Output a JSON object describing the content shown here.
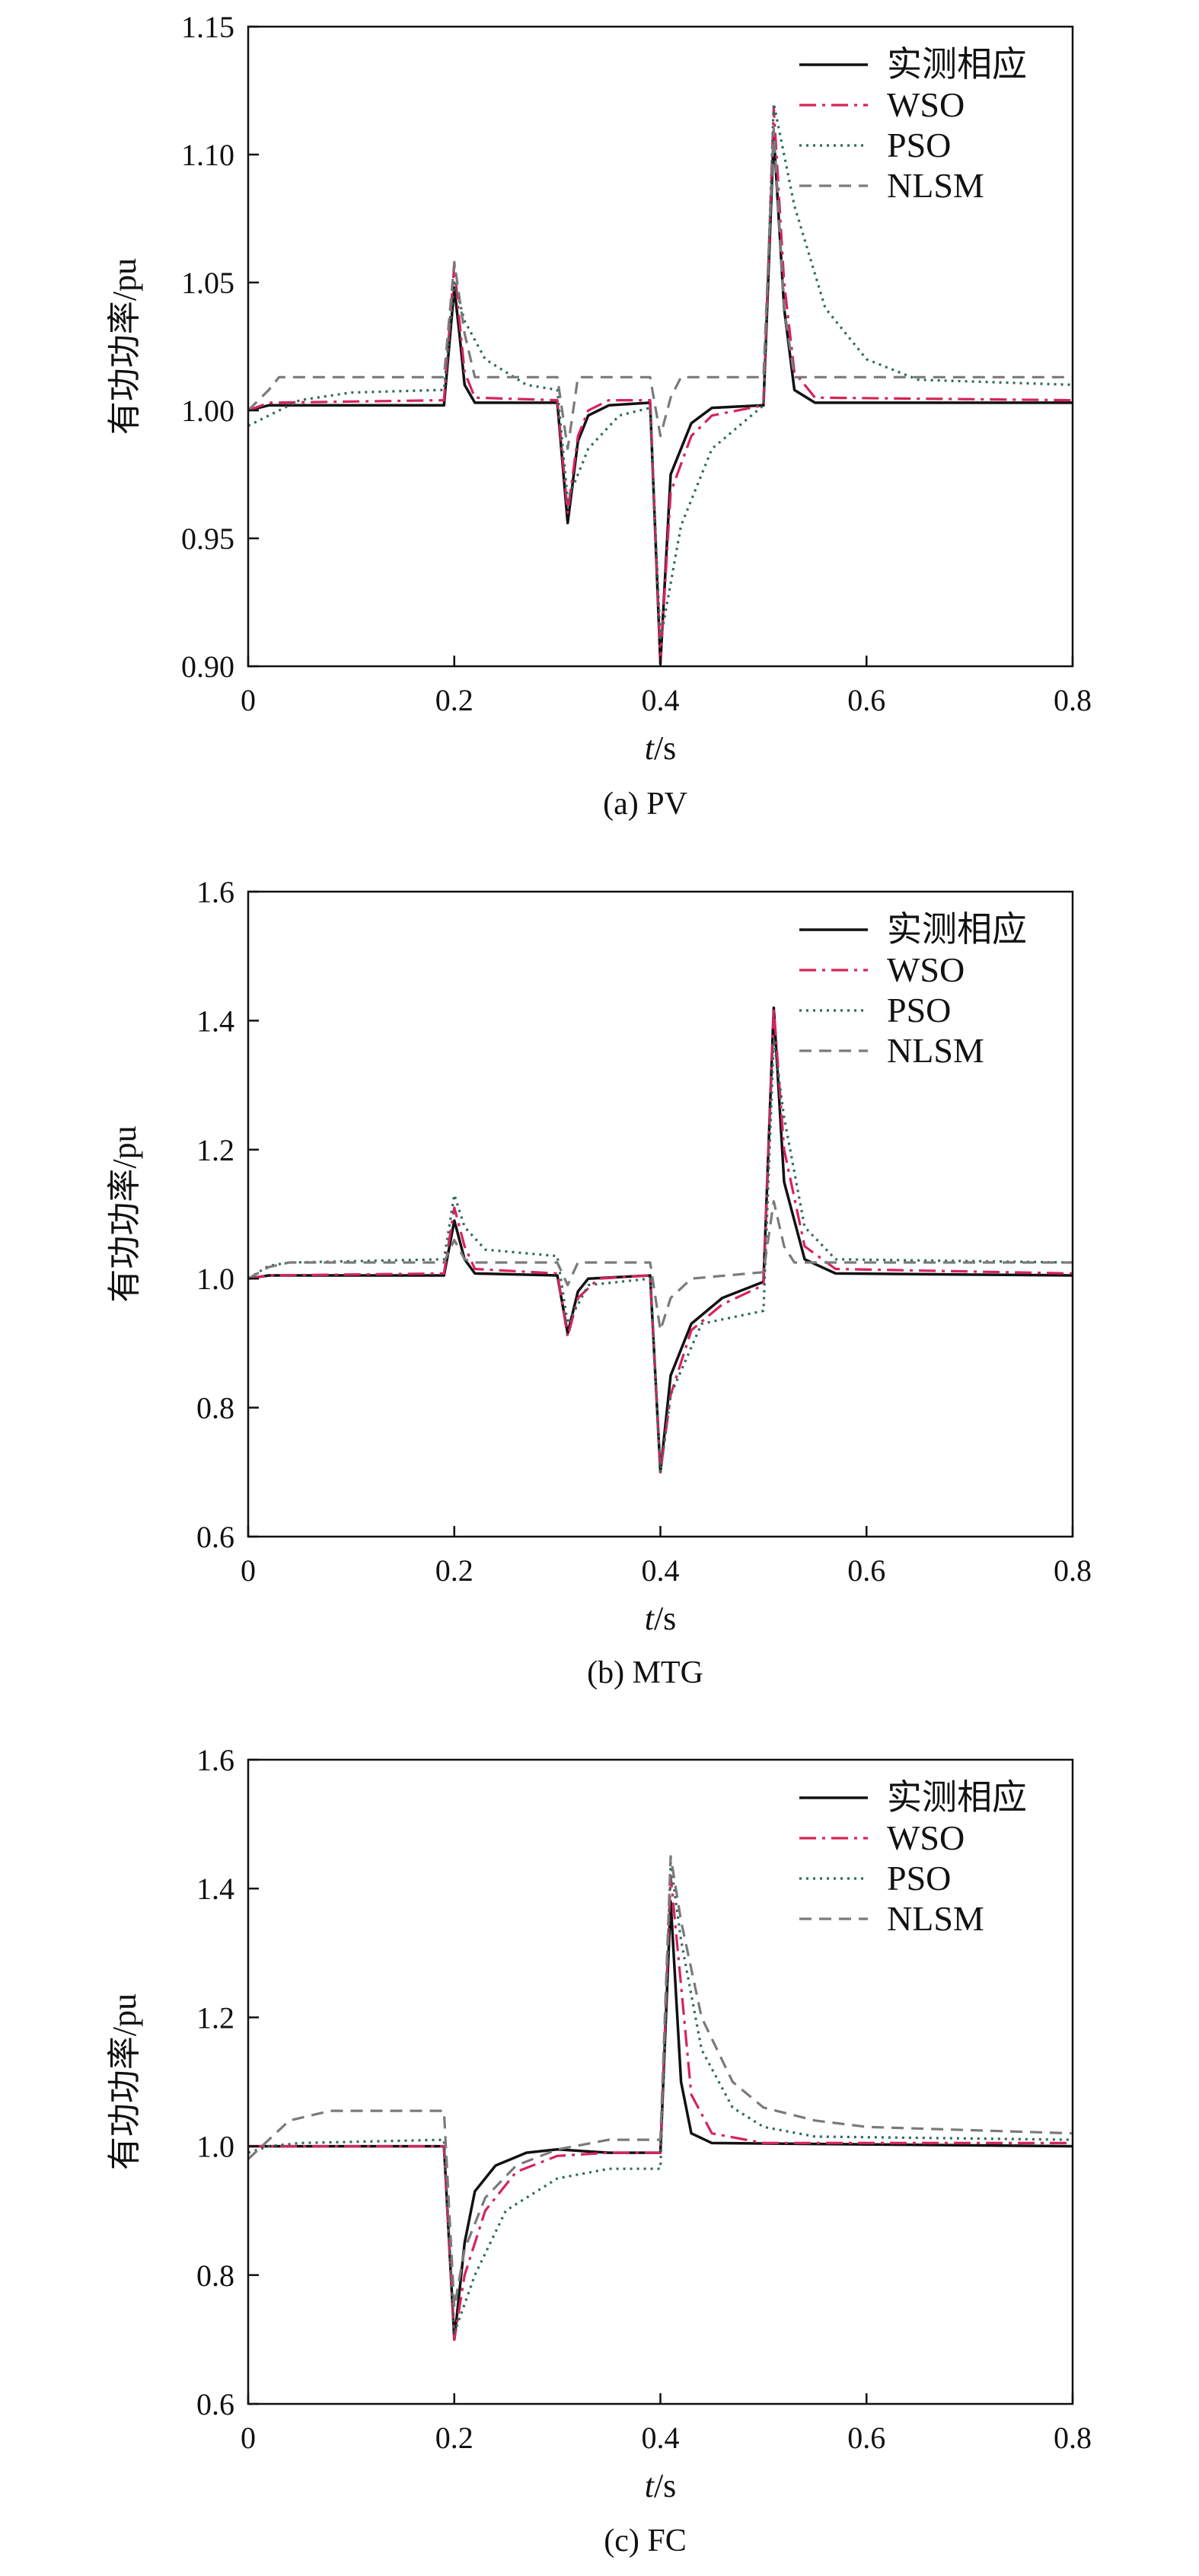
{
  "chart_data": [
    {
      "type": "line",
      "caption": "(a) PV",
      "xlabel_italic": "t",
      "xlabel_unit": "/s",
      "ylabel": "有功功率/pu",
      "xlim": [
        0,
        0.8
      ],
      "ylim": [
        0.9,
        1.15
      ],
      "xticks": [
        0,
        0.2,
        0.4,
        0.6,
        0.8
      ],
      "xtick_labels": [
        "0",
        "0.2",
        "0.4",
        "0.6",
        "0.8"
      ],
      "yticks": [
        0.9,
        0.95,
        1.0,
        1.05,
        1.1,
        1.15
      ],
      "ytick_labels": [
        "0.90",
        "0.95",
        "1.00",
        "1.05",
        "1.10",
        "1.15"
      ],
      "legend_position": "top-right",
      "grid": false,
      "series": [
        {
          "name": "实测相应",
          "color": "#111111",
          "dash": "solid",
          "x": [
            0,
            0.02,
            0.19,
            0.2,
            0.205,
            0.21,
            0.22,
            0.3,
            0.31,
            0.32,
            0.33,
            0.35,
            0.39,
            0.4,
            0.41,
            0.43,
            0.45,
            0.5,
            0.51,
            0.52,
            0.53,
            0.55,
            0.8
          ],
          "y": [
            1.0,
            1.002,
            1.002,
            1.048,
            1.03,
            1.01,
            1.003,
            1.003,
            0.956,
            0.988,
            0.998,
            1.002,
            1.003,
            0.901,
            0.975,
            0.995,
            1.001,
            1.002,
            1.108,
            1.04,
            1.008,
            1.003,
            1.003
          ]
        },
        {
          "name": "WSO",
          "color": "#d6245a",
          "dash": "dashdot",
          "x": [
            0,
            0.02,
            0.19,
            0.2,
            0.205,
            0.21,
            0.22,
            0.3,
            0.31,
            0.32,
            0.33,
            0.35,
            0.39,
            0.4,
            0.41,
            0.43,
            0.45,
            0.5,
            0.51,
            0.52,
            0.53,
            0.55,
            0.8
          ],
          "y": [
            1.0,
            1.003,
            1.004,
            1.057,
            1.035,
            1.015,
            1.005,
            1.004,
            0.96,
            0.99,
            1.0,
            1.004,
            1.004,
            0.902,
            0.968,
            0.99,
            0.998,
            1.002,
            1.118,
            1.05,
            1.015,
            1.005,
            1.004
          ]
        },
        {
          "name": "PSO",
          "color": "#2e6a5e",
          "dash": "dotted",
          "x": [
            0,
            0.02,
            0.05,
            0.1,
            0.19,
            0.2,
            0.21,
            0.23,
            0.27,
            0.3,
            0.31,
            0.33,
            0.36,
            0.39,
            0.4,
            0.42,
            0.45,
            0.5,
            0.51,
            0.53,
            0.56,
            0.6,
            0.65,
            0.8
          ],
          "y": [
            0.994,
            0.998,
            1.004,
            1.007,
            1.008,
            1.05,
            1.035,
            1.02,
            1.01,
            1.008,
            0.965,
            0.985,
            0.998,
            1.001,
            0.91,
            0.955,
            0.985,
            1.002,
            1.12,
            1.08,
            1.04,
            1.02,
            1.012,
            1.01
          ]
        },
        {
          "name": "NLSM",
          "color": "#7a7a7a",
          "dash": "dashed",
          "x": [
            0,
            0.02,
            0.03,
            0.19,
            0.2,
            0.21,
            0.22,
            0.3,
            0.31,
            0.32,
            0.39,
            0.4,
            0.41,
            0.42,
            0.5,
            0.51,
            0.52,
            0.53,
            0.8
          ],
          "y": [
            1.0,
            1.008,
            1.013,
            1.013,
            1.058,
            1.03,
            1.013,
            1.013,
            0.985,
            1.013,
            1.013,
            0.99,
            1.005,
            1.013,
            1.013,
            1.11,
            1.04,
            1.013,
            1.013
          ]
        }
      ]
    },
    {
      "type": "line",
      "caption": "(b) MTG",
      "xlabel_italic": "t",
      "xlabel_unit": "/s",
      "ylabel": "有功功率/pu",
      "xlim": [
        0,
        0.8
      ],
      "ylim": [
        0.6,
        1.6
      ],
      "xticks": [
        0,
        0.2,
        0.4,
        0.6,
        0.8
      ],
      "xtick_labels": [
        "0",
        "0.2",
        "0.4",
        "0.6",
        "0.8"
      ],
      "yticks": [
        0.6,
        0.8,
        1.0,
        1.2,
        1.4,
        1.6
      ],
      "ytick_labels": [
        "0.6",
        "0.8",
        "1.0",
        "1.2",
        "1.4",
        "1.6"
      ],
      "legend_position": "top-right",
      "grid": false,
      "series": [
        {
          "name": "实测相应",
          "color": "#111111",
          "dash": "solid",
          "x": [
            0,
            0.02,
            0.19,
            0.2,
            0.21,
            0.22,
            0.3,
            0.31,
            0.32,
            0.33,
            0.39,
            0.4,
            0.41,
            0.43,
            0.46,
            0.5,
            0.51,
            0.52,
            0.54,
            0.57,
            0.8
          ],
          "y": [
            1.0,
            1.005,
            1.005,
            1.09,
            1.03,
            1.008,
            1.005,
            0.915,
            0.98,
            1.0,
            1.005,
            0.7,
            0.85,
            0.93,
            0.97,
            0.995,
            1.42,
            1.15,
            1.03,
            1.008,
            1.005
          ]
        },
        {
          "name": "WSO",
          "color": "#d6245a",
          "dash": "dashdot",
          "x": [
            0,
            0.02,
            0.19,
            0.2,
            0.21,
            0.22,
            0.3,
            0.31,
            0.32,
            0.34,
            0.39,
            0.4,
            0.41,
            0.43,
            0.46,
            0.5,
            0.51,
            0.52,
            0.54,
            0.57,
            0.8
          ],
          "y": [
            1.0,
            1.005,
            1.008,
            1.11,
            1.05,
            1.015,
            1.008,
            0.91,
            0.97,
            1.0,
            1.005,
            0.7,
            0.82,
            0.92,
            0.96,
            0.99,
            1.42,
            1.2,
            1.05,
            1.015,
            1.008
          ]
        },
        {
          "name": "PSO",
          "color": "#2e6a5e",
          "dash": "dotted",
          "x": [
            0,
            0.02,
            0.04,
            0.19,
            0.2,
            0.21,
            0.23,
            0.3,
            0.31,
            0.33,
            0.39,
            0.4,
            0.41,
            0.44,
            0.5,
            0.51,
            0.52,
            0.54,
            0.57,
            0.8
          ],
          "y": [
            1.0,
            1.02,
            1.025,
            1.03,
            1.13,
            1.08,
            1.045,
            1.035,
            0.93,
            0.99,
            1.0,
            0.7,
            0.82,
            0.93,
            0.95,
            1.37,
            1.25,
            1.08,
            1.03,
            1.025
          ]
        },
        {
          "name": "NLSM",
          "color": "#7a7a7a",
          "dash": "dashed",
          "x": [
            0,
            0.02,
            0.04,
            0.19,
            0.2,
            0.21,
            0.22,
            0.3,
            0.31,
            0.32,
            0.39,
            0.4,
            0.41,
            0.43,
            0.5,
            0.51,
            0.52,
            0.53,
            0.8
          ],
          "y": [
            1.0,
            1.018,
            1.025,
            1.025,
            1.06,
            1.03,
            1.025,
            1.025,
            0.99,
            1.025,
            1.025,
            0.92,
            0.97,
            1.0,
            1.01,
            1.12,
            1.05,
            1.025,
            1.025
          ]
        }
      ]
    },
    {
      "type": "line",
      "caption": "(c) FC",
      "xlabel_italic": "t",
      "xlabel_unit": "/s",
      "ylabel": "有功功率/pu",
      "xlim": [
        0,
        0.8
      ],
      "ylim": [
        0.6,
        1.6
      ],
      "xticks": [
        0,
        0.2,
        0.4,
        0.6,
        0.8
      ],
      "xtick_labels": [
        "0",
        "0.2",
        "0.4",
        "0.6",
        "0.8"
      ],
      "yticks": [
        0.6,
        0.8,
        1.0,
        1.2,
        1.4,
        1.6
      ],
      "ytick_labels": [
        "0.6",
        "0.8",
        "1.0",
        "1.2",
        "1.4",
        "1.6"
      ],
      "legend_position": "top-right",
      "grid": false,
      "series": [
        {
          "name": "实测相应",
          "color": "#111111",
          "dash": "solid",
          "x": [
            0,
            0.19,
            0.2,
            0.21,
            0.22,
            0.24,
            0.27,
            0.3,
            0.35,
            0.4,
            0.41,
            0.42,
            0.43,
            0.45,
            0.8
          ],
          "y": [
            1.0,
            1.0,
            0.7,
            0.85,
            0.93,
            0.97,
            0.99,
            0.995,
            0.99,
            0.99,
            1.38,
            1.1,
            1.02,
            1.005,
            1.0
          ]
        },
        {
          "name": "WSO",
          "color": "#d6245a",
          "dash": "dashdot",
          "x": [
            0,
            0.19,
            0.2,
            0.21,
            0.23,
            0.26,
            0.3,
            0.35,
            0.4,
            0.41,
            0.42,
            0.43,
            0.45,
            0.5,
            0.8
          ],
          "y": [
            1.0,
            1.0,
            0.7,
            0.8,
            0.9,
            0.96,
            0.985,
            0.99,
            0.99,
            1.42,
            1.25,
            1.08,
            1.02,
            1.005,
            1.005
          ]
        },
        {
          "name": "PSO",
          "color": "#2e6a5e",
          "dash": "dotted",
          "x": [
            0,
            0.02,
            0.05,
            0.19,
            0.2,
            0.22,
            0.25,
            0.3,
            0.35,
            0.4,
            0.41,
            0.42,
            0.44,
            0.47,
            0.5,
            0.55,
            0.8
          ],
          "y": [
            0.99,
            1.0,
            1.005,
            1.01,
            0.71,
            0.8,
            0.9,
            0.95,
            0.965,
            0.965,
            1.44,
            1.32,
            1.15,
            1.06,
            1.03,
            1.015,
            1.01
          ]
        },
        {
          "name": "NLSM",
          "color": "#7a7a7a",
          "dash": "dashed",
          "x": [
            0,
            0.02,
            0.04,
            0.08,
            0.19,
            0.2,
            0.21,
            0.23,
            0.26,
            0.3,
            0.35,
            0.4,
            0.41,
            0.42,
            0.44,
            0.47,
            0.5,
            0.55,
            0.6,
            0.8
          ],
          "y": [
            0.98,
            1.01,
            1.04,
            1.055,
            1.055,
            0.75,
            0.84,
            0.92,
            0.97,
            0.995,
            1.01,
            1.01,
            1.45,
            1.35,
            1.2,
            1.1,
            1.06,
            1.04,
            1.03,
            1.02
          ]
        }
      ]
    }
  ]
}
